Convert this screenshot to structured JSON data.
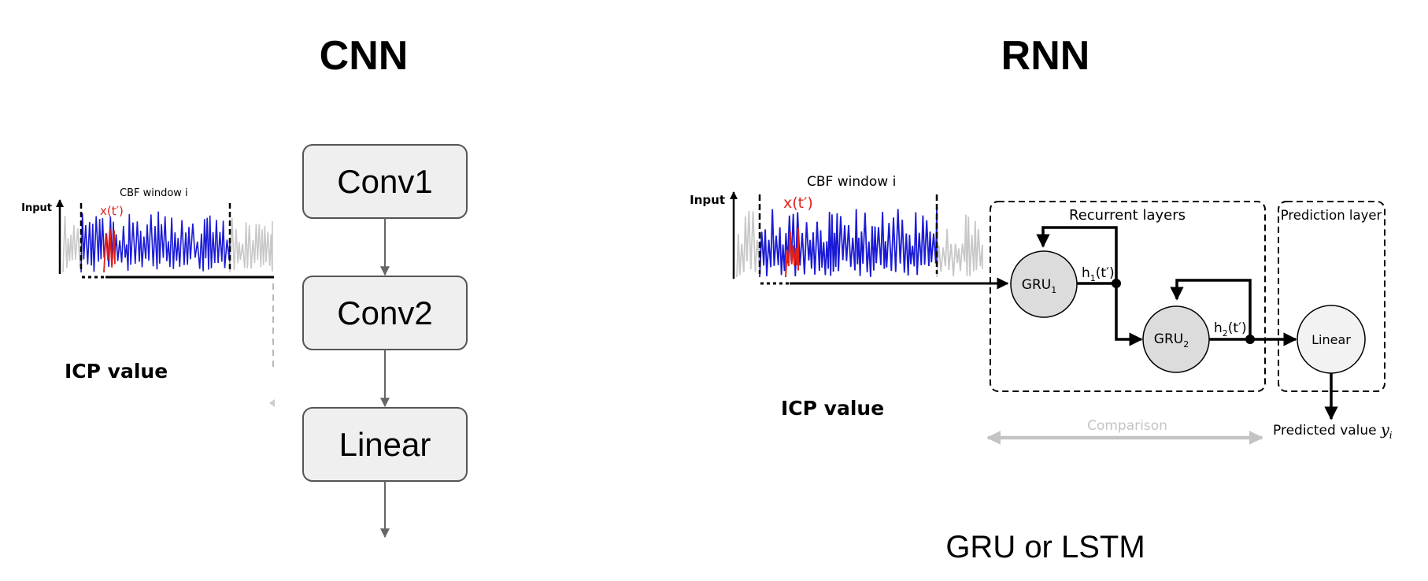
{
  "cnn": {
    "heading": "CNN",
    "signal": {
      "input_label": "Input",
      "window_label": "CBF window i",
      "sample_label": "x(t′)",
      "icp_label": "ICP value"
    },
    "layers": [
      "Conv1",
      "Conv2",
      "Linear"
    ]
  },
  "rnn": {
    "heading": "RNN",
    "signal": {
      "input_label": "Input",
      "window_label": "CBF window i",
      "sample_label": "x(t′)",
      "icp_label": "ICP value"
    },
    "recurrent_label": "Recurrent layers",
    "prediction_label": "Prediction layer",
    "gru1": {
      "base": "GRU",
      "sub": "1"
    },
    "gru2": {
      "base": "GRU",
      "sub": "2"
    },
    "h1": {
      "base": "h",
      "sub": "1",
      "rest": "(t′)"
    },
    "h2": {
      "base": "h",
      "sub": "2",
      "rest": "(t′)"
    },
    "linear_label": "Linear",
    "predicted": {
      "text": "Predicted value ",
      "symbol": "y",
      "sub": "i"
    },
    "comparison_label": "Comparison",
    "caption": "GRU or LSTM"
  },
  "colors": {
    "signal_context": "#c8c8c8",
    "signal_window": "#1a1ad6",
    "signal_sample": "#e0201a",
    "box_fill": "#efefef",
    "box_stroke": "#555555",
    "gru_fill": "#dcdcdc",
    "linear_fill": "#f2f2f2",
    "comparison": "#c4c4c4"
  }
}
